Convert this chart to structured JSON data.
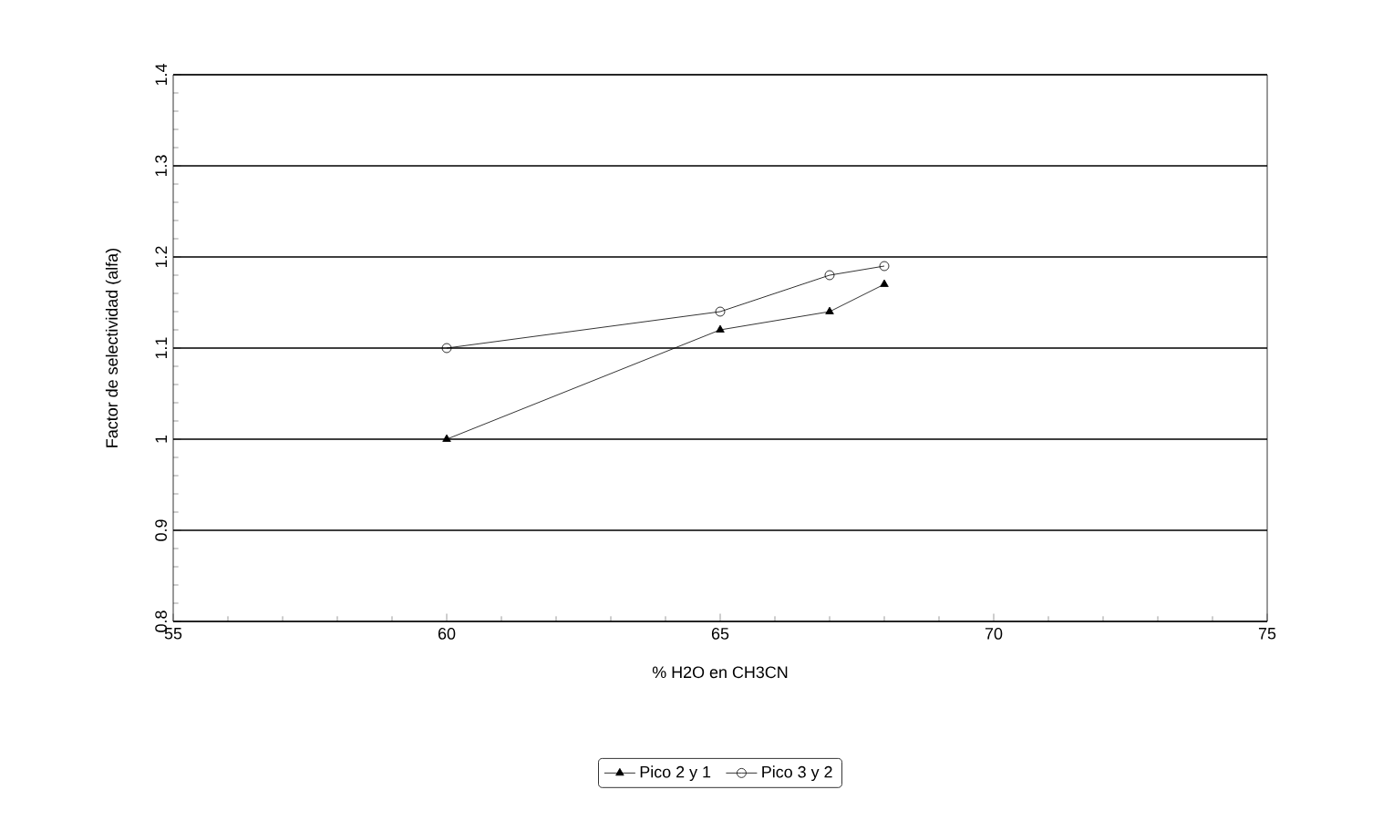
{
  "chart_data": {
    "type": "line",
    "xlabel": "% H2O en CH3CN",
    "ylabel": "Factor de selectividad (alfa)",
    "xlim": [
      55,
      75
    ],
    "xticks": [
      55,
      60,
      65,
      70,
      75
    ],
    "ylim": [
      0.8,
      1.4
    ],
    "yticks": [
      0.8,
      0.9,
      1,
      1.1,
      1.2,
      1.3,
      1.4
    ],
    "grid": "y",
    "legend": "bottom",
    "line_style": "solid",
    "series": [
      {
        "name": "Pico 2 y 1",
        "color": "#000000",
        "marker": "triangle",
        "x": [
          60,
          65,
          67,
          68
        ],
        "values": [
          1.0,
          1.12,
          1.14,
          1.17
        ]
      },
      {
        "name": "Pico 3 y 2",
        "color": "#000000",
        "marker": "circle",
        "x": [
          60,
          65,
          67,
          68
        ],
        "values": [
          1.1,
          1.14,
          1.18,
          1.19
        ]
      }
    ]
  }
}
